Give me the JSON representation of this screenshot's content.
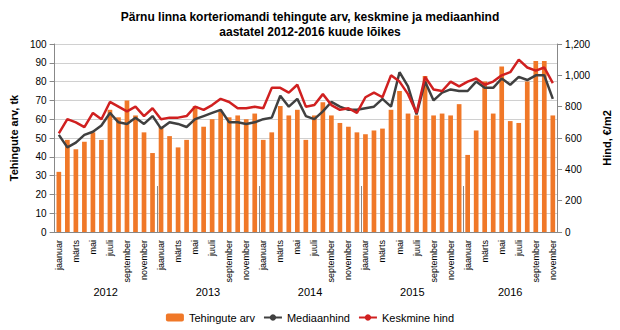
{
  "chart_data": {
    "type": "bar",
    "title": "Pärnu linna korteriomandi tehingute arv, keskmine ja mediaanhind\naastatel 2012-2016 kuude lõikes",
    "y_label": "Tehingute arv, tk",
    "y2_label": "Hind, €/m2",
    "categories": [
      "jaanuar",
      null,
      "märts",
      null,
      "mai",
      null,
      "juuli",
      null,
      "september",
      null,
      "november",
      null,
      "jaanuar",
      null,
      "märts",
      null,
      "mai",
      null,
      "juuli",
      null,
      "september",
      null,
      "november",
      null,
      "jaanuar",
      null,
      "märts",
      null,
      "mai",
      null,
      "juuli",
      null,
      "september",
      null,
      "november",
      null,
      "jaanuar",
      null,
      "märts",
      null,
      "mai",
      null,
      "juuli",
      null,
      "september",
      null,
      "november",
      null,
      "jaanuar",
      null,
      "märts",
      null,
      "mai",
      null,
      "juuli",
      null,
      "september",
      null,
      "november"
    ],
    "groups": [
      {
        "label": "2012",
        "count": 12
      },
      {
        "label": "2013",
        "count": 12
      },
      {
        "label": "2014",
        "count": 12
      },
      {
        "label": "2015",
        "count": 12
      },
      {
        "label": "2016",
        "count": 11
      }
    ],
    "series": [
      {
        "name": "Tehingute arv",
        "type": "bar",
        "color": "#f07828",
        "values": [
          32,
          49,
          44,
          48,
          53,
          49,
          65,
          61,
          70,
          62,
          53,
          42,
          56,
          51,
          45,
          49,
          67,
          56,
          60,
          64,
          61,
          62,
          60,
          63,
          49,
          53,
          67,
          62,
          65,
          49,
          62,
          69,
          62,
          58,
          56,
          53,
          52,
          54,
          55,
          65,
          75,
          63,
          62,
          83,
          62,
          63,
          62,
          68,
          41,
          54,
          80,
          63,
          88,
          59,
          58,
          80,
          91,
          91,
          62
        ]
      },
      {
        "name": "Mediaanhind",
        "type": "line",
        "axis": "y2",
        "color": "#404040",
        "values": [
          620,
          540,
          570,
          620,
          640,
          680,
          760,
          700,
          690,
          730,
          690,
          740,
          660,
          700,
          690,
          670,
          720,
          740,
          760,
          780,
          700,
          700,
          690,
          700,
          720,
          730,
          870,
          800,
          850,
          740,
          720,
          770,
          830,
          800,
          780,
          780,
          790,
          800,
          850,
          800,
          1020,
          930,
          750,
          960,
          840,
          890,
          910,
          900,
          900,
          960,
          920,
          920,
          980,
          940,
          990,
          970,
          1000,
          1000,
          850
        ]
      },
      {
        "name": "Keskmine hind",
        "type": "line",
        "axis": "y2",
        "color": "#d02020",
        "values": [
          630,
          720,
          700,
          670,
          760,
          720,
          830,
          800,
          770,
          800,
          740,
          790,
          720,
          730,
          730,
          740,
          800,
          780,
          810,
          850,
          830,
          790,
          790,
          800,
          790,
          920,
          920,
          890,
          940,
          800,
          810,
          880,
          810,
          780,
          790,
          760,
          860,
          890,
          860,
          1000,
          960,
          880,
          760,
          990,
          910,
          900,
          960,
          930,
          960,
          980,
          940,
          960,
          1000,
          1020,
          1100,
          1050,
          1030,
          1050,
          950
        ]
      }
    ],
    "ylim": [
      0,
      100
    ],
    "yticks": [
      0,
      10,
      20,
      30,
      40,
      50,
      60,
      70,
      80,
      90,
      100
    ],
    "y2lim": [
      0,
      1200
    ],
    "y2ticks": [
      0,
      200,
      400,
      600,
      800,
      1000,
      1200
    ],
    "grid": true,
    "legend": "bottom"
  }
}
